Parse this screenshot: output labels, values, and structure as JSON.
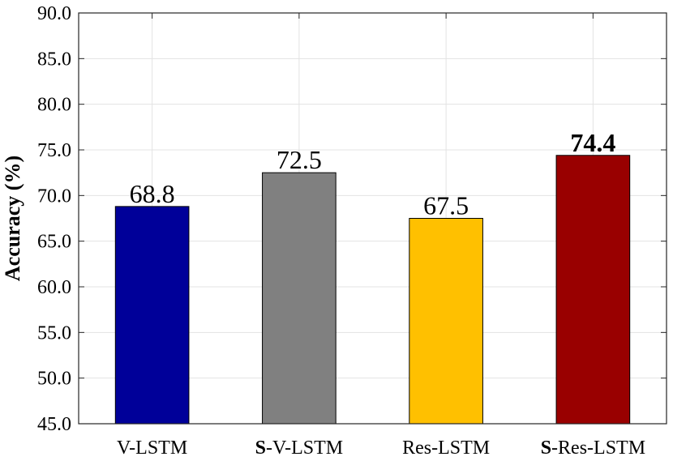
{
  "chart_data": {
    "type": "bar",
    "categories": [
      "V-LSTM",
      "S-V-LSTM",
      "Res-LSTM",
      "S-Res-LSTM"
    ],
    "category_parts": [
      {
        "bold": "",
        "rest": "V-LSTM"
      },
      {
        "bold": "S",
        "rest": "-V-LSTM"
      },
      {
        "bold": "",
        "rest": "Res-LSTM"
      },
      {
        "bold": "S",
        "rest": "-Res-LSTM"
      }
    ],
    "values": [
      68.8,
      72.5,
      67.5,
      74.4
    ],
    "value_labels": [
      "68.8",
      "72.5",
      "67.5",
      "74.4"
    ],
    "highlight_index": 3,
    "colors": [
      "#000099",
      "#808080",
      "#FFC000",
      "#990000"
    ],
    "ylabel": "Accuracy (%)",
    "xlabel": "",
    "ylim": [
      45.0,
      90.0
    ],
    "yticks": [
      "45.0",
      "50.0",
      "55.0",
      "60.0",
      "65.0",
      "70.0",
      "75.0",
      "80.0",
      "85.0",
      "90.0"
    ],
    "grid": true
  }
}
